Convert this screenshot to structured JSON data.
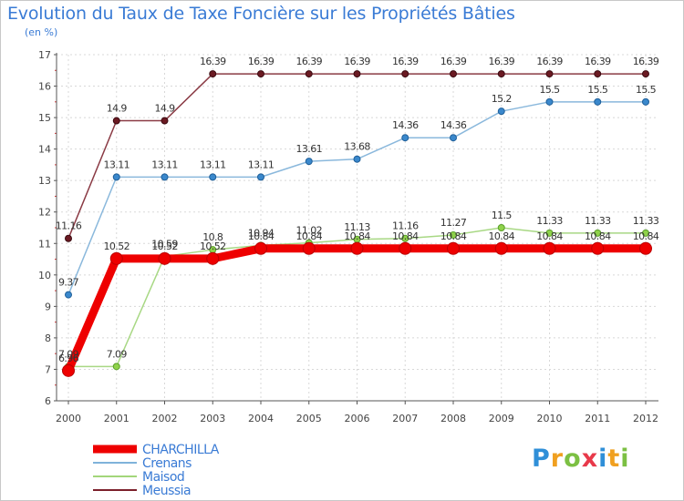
{
  "chart_data": {
    "type": "line",
    "title": "Evolution du Taux de Taxe Foncière sur les Propriétés Bâties",
    "subtitle": "(en %)",
    "xlabel": "",
    "ylabel": "",
    "ylim": [
      6,
      17
    ],
    "yticks": [
      "6",
      "7",
      "8",
      "9",
      "10",
      "11",
      "12",
      "13",
      "14",
      "15",
      "16",
      "17"
    ],
    "categories": [
      "2000",
      "2001",
      "2002",
      "2003",
      "2004",
      "2005",
      "2006",
      "2007",
      "2008",
      "2009",
      "2010",
      "2011",
      "2012"
    ],
    "series": [
      {
        "name": "Meussia",
        "color": "#7b1f2a",
        "values": [
          11.16,
          14.9,
          14.9,
          16.39,
          16.39,
          16.39,
          16.39,
          16.39,
          16.39,
          16.39,
          16.39,
          16.39,
          16.39
        ],
        "labels": [
          "11.16",
          "14.9",
          "14.9",
          "16.39",
          "16.39",
          "16.39",
          "16.39",
          "16.39",
          "16.39",
          "16.39",
          "16.39",
          "16.39",
          "16.39"
        ]
      },
      {
        "name": "Crenans",
        "color": "#7fb3da",
        "values": [
          9.37,
          13.11,
          13.11,
          13.11,
          13.11,
          13.61,
          13.68,
          14.36,
          14.36,
          15.2,
          15.5,
          15.5,
          15.5
        ],
        "labels": [
          "9.37",
          "13.11",
          "13.11",
          "13.11",
          "13.11",
          "13.61",
          "13.68",
          "14.36",
          "14.36",
          "15.2",
          "15.5",
          "15.5",
          "15.5"
        ]
      },
      {
        "name": "Maisod",
        "color": "#a3d67a",
        "values": [
          7.09,
          7.09,
          10.59,
          10.8,
          10.94,
          11.02,
          11.13,
          11.16,
          11.27,
          11.5,
          11.33,
          11.33,
          11.33
        ],
        "labels": [
          "7.09",
          "7.09",
          "10.59",
          "10.8",
          "10.94",
          "11.02",
          "11.13",
          "11.16",
          "11.27",
          "11.5",
          "11.33",
          "11.33",
          "11.33"
        ]
      },
      {
        "name": "CHARCHILLA",
        "color": "#ee0000",
        "values": [
          6.96,
          10.52,
          10.52,
          10.52,
          10.84,
          10.84,
          10.84,
          10.84,
          10.84,
          10.84,
          10.84,
          10.84,
          10.84
        ],
        "labels": [
          "6.96",
          "10.52",
          "10.52",
          "10.52",
          "10.84",
          "10.84",
          "10.84",
          "10.84",
          "10.84",
          "10.84",
          "10.84",
          "10.84",
          "10.84"
        ]
      }
    ],
    "legend": [
      {
        "name": "CHARCHILLA",
        "color": "#ee0000"
      },
      {
        "name": "Crenans",
        "color": "#7fb3da"
      },
      {
        "name": "Maisod",
        "color": "#a3d67a"
      },
      {
        "name": "Meussia",
        "color": "#7b1f2a"
      }
    ],
    "legend_position": "bottom-left"
  },
  "logo": {
    "letters": [
      "P",
      "r",
      "o",
      "x",
      "i",
      "t",
      "i"
    ]
  }
}
